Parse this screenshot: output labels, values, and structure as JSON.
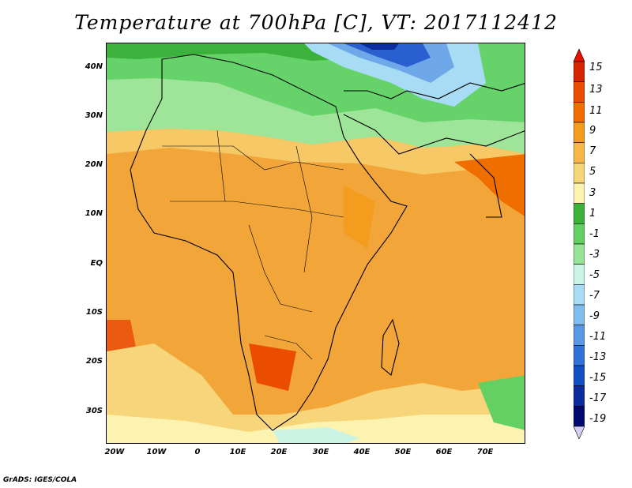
{
  "title": "Temperature at 700hPa [C], VT: 2017112412",
  "footer": "GrADS: IGES/COLA",
  "axes": {
    "lat_labels": [
      "40N",
      "30N",
      "20N",
      "10N",
      "EQ",
      "10S",
      "20S",
      "30S"
    ],
    "lon_labels": [
      "20W",
      "10W",
      "0",
      "10E",
      "20E",
      "30E",
      "40E",
      "50E",
      "60E",
      "70E"
    ]
  },
  "colorbar": {
    "levels": [
      "15",
      "13",
      "11",
      "9",
      "7",
      "5",
      "3",
      "1",
      "-1",
      "-3",
      "-5",
      "-7",
      "-9",
      "-11",
      "-13",
      "-15",
      "-17",
      "-19"
    ],
    "colors": [
      "#d82400",
      "#ea4c00",
      "#f06e00",
      "#f39c1e",
      "#f7b648",
      "#f7d57a",
      "#fdf3b0",
      "#3cb23c",
      "#64d064",
      "#96e496",
      "#ccf4e4",
      "#a8dcf4",
      "#80bcec",
      "#5898e4",
      "#3272d8",
      "#1450c4",
      "#0a2c9c",
      "#000a6c"
    ],
    "over_color": "#e81000",
    "under_color": "#d4d0f4"
  }
}
